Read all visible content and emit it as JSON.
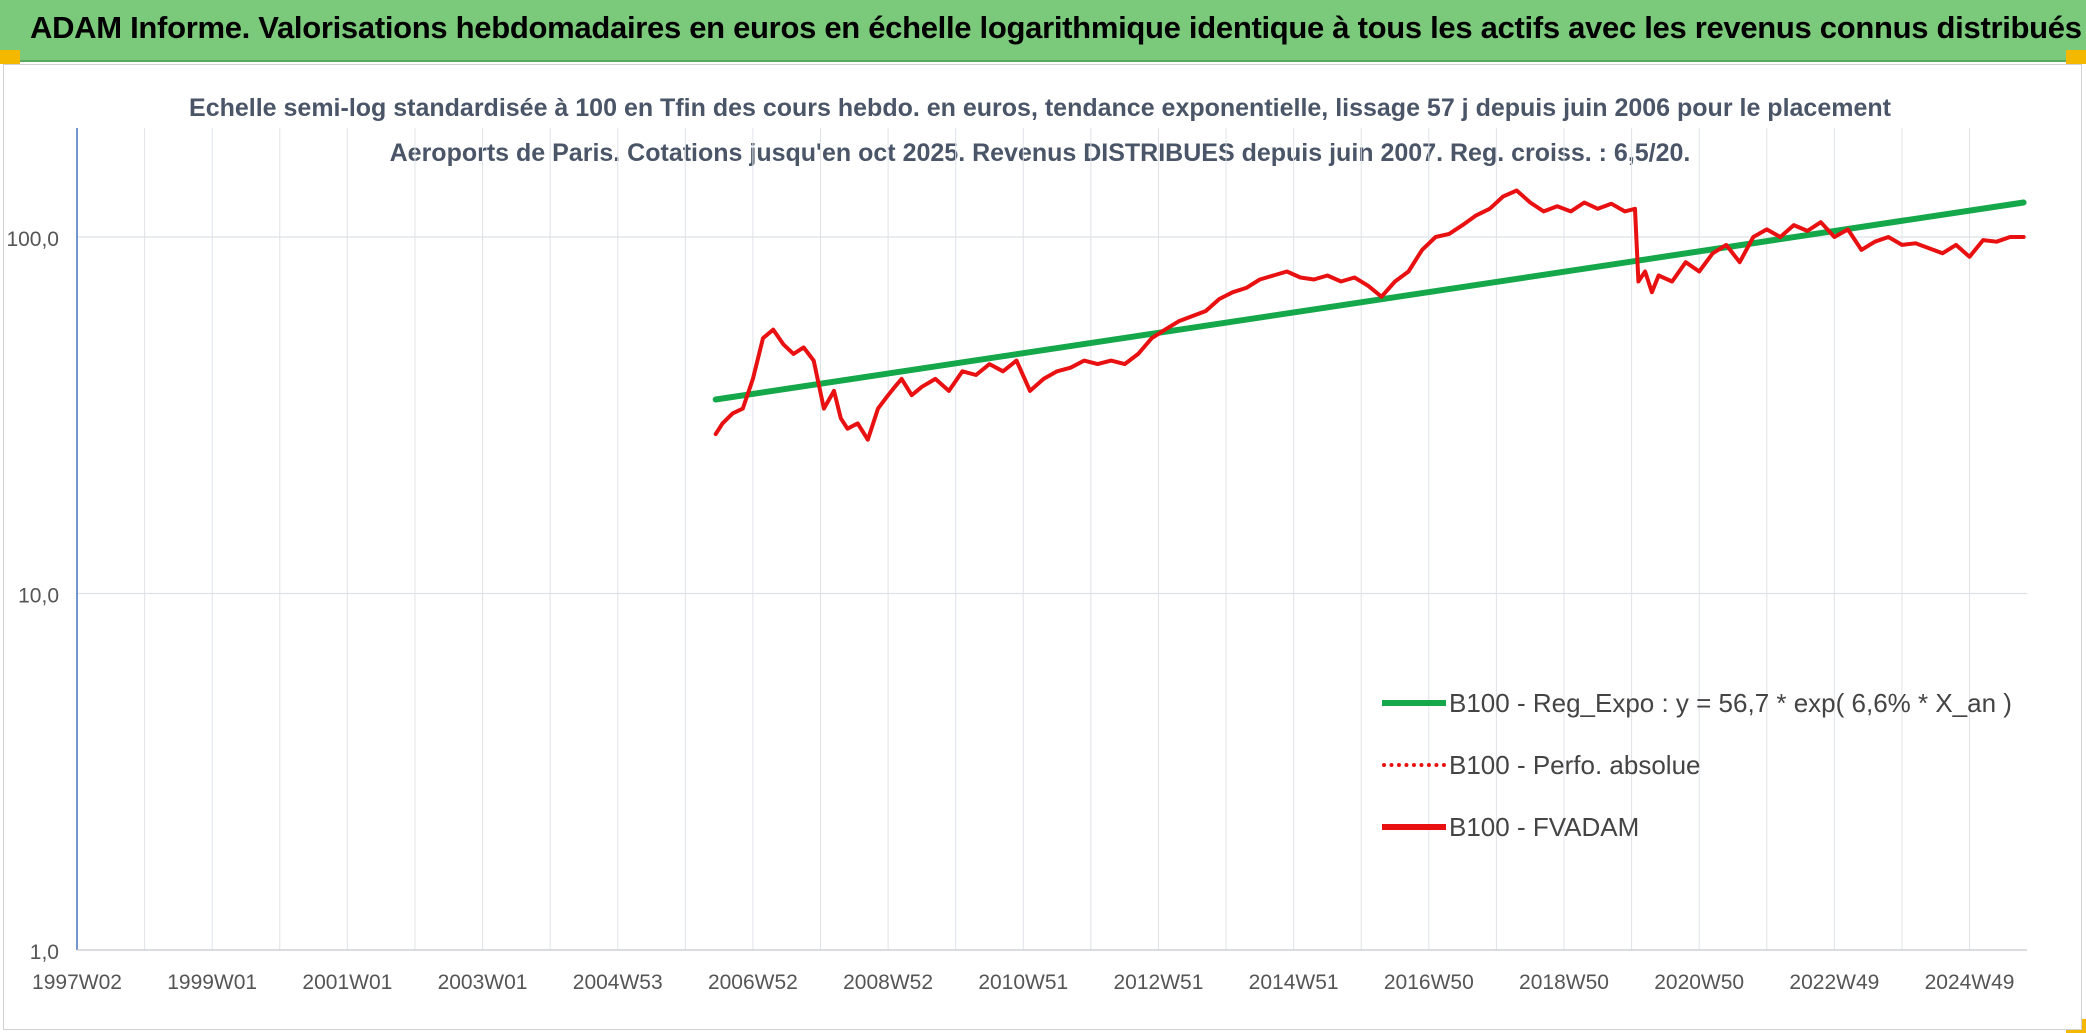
{
  "page_title": "ADAM Informe. Valorisations hebdomadaires en euros en échelle logarithmique identique à tous les actifs avec les revenus connus distribués",
  "chart_data": {
    "type": "line",
    "title": "Echelle semi-log standardisée à 100 en Tfin des cours hebdo. en euros, tendance exponentielle, lissage 57 j depuis juin 2006 pour le placement Aeroports de Paris. Cotations jusqu'en oct 2025. Revenus DISTRIBUES depuis juin 2007. Reg. croiss. : 6,5/20.",
    "y_scale": "log",
    "ylim": [
      1,
      200
    ],
    "xlim": [
      1997.0,
      2025.85
    ],
    "y_ticks": [
      {
        "value": 1,
        "label": "1,0"
      },
      {
        "value": 10,
        "label": "10,0"
      },
      {
        "value": 100,
        "label": "100,0"
      }
    ],
    "x_ticks": [
      {
        "value": 1997.0,
        "label": "1997W02"
      },
      {
        "value": 1999.0,
        "label": "1999W01"
      },
      {
        "value": 2001.0,
        "label": "2001W01"
      },
      {
        "value": 2003.0,
        "label": "2003W01"
      },
      {
        "value": 2005.0,
        "label": "2004W53"
      },
      {
        "value": 2007.0,
        "label": "2006W52"
      },
      {
        "value": 2009.0,
        "label": "2008W52"
      },
      {
        "value": 2011.0,
        "label": "2010W51"
      },
      {
        "value": 2013.0,
        "label": "2012W51"
      },
      {
        "value": 2015.0,
        "label": "2014W51"
      },
      {
        "value": 2017.0,
        "label": "2016W50"
      },
      {
        "value": 2019.0,
        "label": "2018W50"
      },
      {
        "value": 2021.0,
        "label": "2020W50"
      },
      {
        "value": 2023.0,
        "label": "2022W49"
      },
      {
        "value": 2025.0,
        "label": "2024W49"
      }
    ],
    "grid": true,
    "legend_position": "bottom-right",
    "series": [
      {
        "name": "B100 - Reg_Expo : y = 56,7 * exp( 6,6% *  X_an )",
        "color": "#14a84a",
        "style": "solid",
        "x": [
          2006.45,
          2025.8
        ],
        "y": [
          35.0,
          125.0
        ]
      },
      {
        "name": "B100 - Perfo. absolue",
        "color": "#e81010",
        "style": "dotted",
        "x": [],
        "y": []
      },
      {
        "name": "B100 - FVADAM",
        "color": "#e81010",
        "style": "solid",
        "x": [
          2006.45,
          2006.55,
          2006.7,
          2006.85,
          2007.0,
          2007.15,
          2007.3,
          2007.45,
          2007.6,
          2007.75,
          2007.9,
          2008.05,
          2008.2,
          2008.3,
          2008.4,
          2008.55,
          2008.7,
          2008.85,
          2009.0,
          2009.1,
          2009.2,
          2009.35,
          2009.5,
          2009.7,
          2009.9,
          2010.1,
          2010.3,
          2010.5,
          2010.7,
          2010.9,
          2011.1,
          2011.3,
          2011.5,
          2011.7,
          2011.9,
          2012.1,
          2012.3,
          2012.5,
          2012.7,
          2012.9,
          2013.1,
          2013.3,
          2013.5,
          2013.7,
          2013.9,
          2014.1,
          2014.3,
          2014.5,
          2014.7,
          2014.9,
          2015.1,
          2015.3,
          2015.5,
          2015.7,
          2015.9,
          2016.1,
          2016.3,
          2016.5,
          2016.7,
          2016.9,
          2017.1,
          2017.3,
          2017.5,
          2017.7,
          2017.9,
          2018.1,
          2018.3,
          2018.5,
          2018.7,
          2018.9,
          2019.1,
          2019.3,
          2019.5,
          2019.7,
          2019.9,
          2020.05,
          2020.1,
          2020.2,
          2020.3,
          2020.4,
          2020.6,
          2020.8,
          2021.0,
          2021.2,
          2021.4,
          2021.6,
          2021.8,
          2022.0,
          2022.2,
          2022.4,
          2022.6,
          2022.8,
          2023.0,
          2023.2,
          2023.4,
          2023.6,
          2023.8,
          2024.0,
          2024.2,
          2024.4,
          2024.6,
          2024.8,
          2025.0,
          2025.2,
          2025.4,
          2025.6,
          2025.8
        ],
        "y": [
          28,
          30,
          32,
          33,
          40,
          52,
          55,
          50,
          47,
          49,
          45,
          33,
          37,
          31,
          29,
          30,
          27,
          33,
          36,
          38,
          40,
          36,
          38,
          40,
          37,
          42,
          41,
          44,
          42,
          45,
          37,
          40,
          42,
          43,
          45,
          44,
          45,
          44,
          47,
          52,
          55,
          58,
          60,
          62,
          67,
          70,
          72,
          76,
          78,
          80,
          77,
          76,
          78,
          75,
          77,
          73,
          68,
          75,
          80,
          92,
          100,
          102,
          108,
          115,
          120,
          130,
          135,
          125,
          118,
          122,
          118,
          125,
          120,
          124,
          118,
          120,
          75,
          80,
          70,
          78,
          75,
          85,
          80,
          90,
          95,
          85,
          100,
          105,
          100,
          108,
          104,
          110,
          100,
          105,
          92,
          97,
          100,
          95,
          96,
          93,
          90,
          95,
          88,
          98,
          97,
          100,
          100
        ]
      }
    ]
  }
}
